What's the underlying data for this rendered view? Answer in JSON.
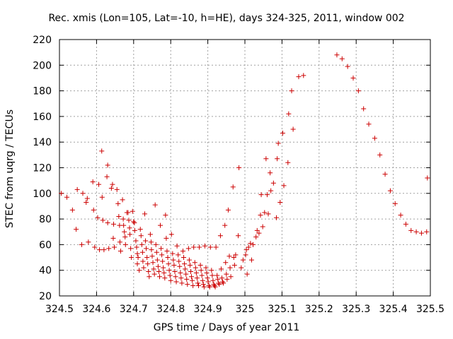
{
  "chart_data": {
    "type": "scatter",
    "title": "Rec. xmis (Lon=105, Lat=-10, h=HE), days 324-325, 2011, window 002",
    "xlabel": "GPS time / Days of year 2011",
    "ylabel": "STEC from uqrg / TECUs",
    "xlim": [
      324.5,
      325.5
    ],
    "ylim": [
      20,
      220
    ],
    "xticks": [
      324.5,
      324.6,
      324.7,
      324.8,
      324.9,
      325,
      325.1,
      325.2,
      325.3,
      325.4,
      325.5
    ],
    "xtick_labels": [
      "324.5",
      "324.6",
      "324.7",
      "324.8",
      "324.9",
      "325",
      "325.1",
      "325.2",
      "325.3",
      "325.4",
      "325.5"
    ],
    "yticks": [
      20,
      40,
      60,
      80,
      100,
      120,
      140,
      160,
      180,
      200,
      220
    ],
    "ytick_labels": [
      "20",
      "40",
      "60",
      "80",
      "100",
      "120",
      "140",
      "160",
      "180",
      "200",
      "220"
    ],
    "grid": true,
    "marker": "+",
    "color": "#cc0000",
    "points": [
      [
        324.505,
        100
      ],
      [
        324.52,
        97
      ],
      [
        324.535,
        87
      ],
      [
        324.545,
        72
      ],
      [
        324.548,
        103
      ],
      [
        324.56,
        60
      ],
      [
        324.563,
        100
      ],
      [
        324.572,
        93
      ],
      [
        324.575,
        96
      ],
      [
        324.578,
        62
      ],
      [
        324.59,
        109
      ],
      [
        324.592,
        87
      ],
      [
        324.595,
        58
      ],
      [
        324.603,
        81
      ],
      [
        324.606,
        107
      ],
      [
        324.608,
        56
      ],
      [
        324.614,
        133
      ],
      [
        324.615,
        97
      ],
      [
        324.617,
        79
      ],
      [
        324.62,
        56
      ],
      [
        324.628,
        113
      ],
      [
        324.63,
        122
      ],
      [
        324.63,
        77
      ],
      [
        324.633,
        57
      ],
      [
        324.64,
        104
      ],
      [
        324.643,
        107
      ],
      [
        324.645,
        65
      ],
      [
        324.646,
        76
      ],
      [
        324.648,
        58
      ],
      [
        324.655,
        103
      ],
      [
        324.658,
        92
      ],
      [
        324.66,
        82
      ],
      [
        324.662,
        75
      ],
      [
        324.663,
        62
      ],
      [
        324.665,
        55
      ],
      [
        324.67,
        95
      ],
      [
        324.672,
        80
      ],
      [
        324.673,
        75
      ],
      [
        324.675,
        70
      ],
      [
        324.677,
        66
      ],
      [
        324.678,
        60
      ],
      [
        324.682,
        85
      ],
      [
        324.685,
        85
      ],
      [
        324.687,
        79
      ],
      [
        324.689,
        73
      ],
      [
        324.69,
        68
      ],
      [
        324.692,
        57
      ],
      [
        324.694,
        50
      ],
      [
        324.697,
        86
      ],
      [
        324.7,
        78
      ],
      [
        324.702,
        77
      ],
      [
        324.703,
        71
      ],
      [
        324.706,
        63
      ],
      [
        324.708,
        58
      ],
      [
        324.71,
        53
      ],
      [
        324.71,
        45
      ],
      [
        324.712,
        50
      ],
      [
        324.715,
        40
      ],
      [
        324.718,
        72
      ],
      [
        324.72,
        67
      ],
      [
        324.722,
        60
      ],
      [
        324.724,
        54
      ],
      [
        324.725,
        47
      ],
      [
        324.727,
        42
      ],
      [
        324.73,
        84
      ],
      [
        324.732,
        63
      ],
      [
        324.734,
        57
      ],
      [
        324.736,
        50
      ],
      [
        324.738,
        45
      ],
      [
        324.74,
        39
      ],
      [
        324.742,
        35
      ],
      [
        324.745,
        68
      ],
      [
        324.747,
        62
      ],
      [
        324.748,
        56
      ],
      [
        324.75,
        51
      ],
      [
        324.752,
        46
      ],
      [
        324.754,
        41
      ],
      [
        324.756,
        37
      ],
      [
        324.758,
        91
      ],
      [
        324.76,
        60
      ],
      [
        324.762,
        54
      ],
      [
        324.764,
        48
      ],
      [
        324.766,
        43
      ],
      [
        324.768,
        39
      ],
      [
        324.77,
        35
      ],
      [
        324.772,
        75
      ],
      [
        324.774,
        57
      ],
      [
        324.776,
        52
      ],
      [
        324.778,
        47
      ],
      [
        324.78,
        42
      ],
      [
        324.782,
        38
      ],
      [
        324.784,
        34
      ],
      [
        324.786,
        83
      ],
      [
        324.788,
        65
      ],
      [
        324.79,
        55
      ],
      [
        324.792,
        50
      ],
      [
        324.794,
        45
      ],
      [
        324.796,
        40
      ],
      [
        324.798,
        36
      ],
      [
        324.8,
        32
      ],
      [
        324.802,
        68
      ],
      [
        324.805,
        53
      ],
      [
        324.807,
        48
      ],
      [
        324.809,
        44
      ],
      [
        324.811,
        39
      ],
      [
        324.813,
        35
      ],
      [
        324.815,
        31
      ],
      [
        324.817,
        59
      ],
      [
        324.82,
        52
      ],
      [
        324.822,
        47
      ],
      [
        324.824,
        43
      ],
      [
        324.826,
        38
      ],
      [
        324.828,
        34
      ],
      [
        324.83,
        30
      ],
      [
        324.833,
        55
      ],
      [
        324.835,
        50
      ],
      [
        324.837,
        45
      ],
      [
        324.839,
        41
      ],
      [
        324.841,
        37
      ],
      [
        324.843,
        33
      ],
      [
        324.845,
        29
      ],
      [
        324.848,
        57
      ],
      [
        324.85,
        48
      ],
      [
        324.852,
        44
      ],
      [
        324.854,
        39
      ],
      [
        324.856,
        35
      ],
      [
        324.858,
        32
      ],
      [
        324.86,
        28
      ],
      [
        324.862,
        58
      ],
      [
        324.865,
        46
      ],
      [
        324.867,
        42
      ],
      [
        324.869,
        38
      ],
      [
        324.871,
        34
      ],
      [
        324.873,
        30
      ],
      [
        324.875,
        28
      ],
      [
        324.877,
        58
      ],
      [
        324.88,
        44
      ],
      [
        324.882,
        40
      ],
      [
        324.884,
        36
      ],
      [
        324.886,
        32
      ],
      [
        324.888,
        29
      ],
      [
        324.89,
        27
      ],
      [
        324.892,
        59
      ],
      [
        324.895,
        42
      ],
      [
        324.897,
        38
      ],
      [
        324.899,
        34
      ],
      [
        324.901,
        31
      ],
      [
        324.903,
        28
      ],
      [
        324.905,
        27
      ],
      [
        324.907,
        58
      ],
      [
        324.91,
        40
      ],
      [
        324.912,
        36
      ],
      [
        324.914,
        32
      ],
      [
        324.916,
        29
      ],
      [
        324.918,
        28
      ],
      [
        324.92,
        27
      ],
      [
        324.922,
        58
      ],
      [
        324.925,
        36
      ],
      [
        324.927,
        33
      ],
      [
        324.929,
        30
      ],
      [
        324.931,
        29
      ],
      [
        324.934,
        67
      ],
      [
        324.936,
        41
      ],
      [
        324.938,
        34
      ],
      [
        324.94,
        31
      ],
      [
        324.942,
        30
      ],
      [
        324.946,
        75
      ],
      [
        324.948,
        46
      ],
      [
        324.95,
        37
      ],
      [
        324.952,
        33
      ],
      [
        324.955,
        87
      ],
      [
        324.958,
        51
      ],
      [
        324.96,
        42
      ],
      [
        324.962,
        35
      ],
      [
        324.968,
        105
      ],
      [
        324.97,
        50
      ],
      [
        324.972,
        44
      ],
      [
        324.975,
        52
      ],
      [
        324.982,
        67
      ],
      [
        324.984,
        120
      ],
      [
        324.99,
        42
      ],
      [
        324.995,
        48
      ],
      [
        325.002,
        52
      ],
      [
        325.004,
        56
      ],
      [
        325.006,
        37
      ],
      [
        325.01,
        58
      ],
      [
        325.015,
        61
      ],
      [
        325.018,
        48
      ],
      [
        325.022,
        60
      ],
      [
        325.03,
        66
      ],
      [
        325.033,
        71
      ],
      [
        325.038,
        69
      ],
      [
        325.042,
        83
      ],
      [
        325.044,
        99
      ],
      [
        325.048,
        74
      ],
      [
        325.053,
        85
      ],
      [
        325.057,
        127
      ],
      [
        325.06,
        99
      ],
      [
        325.063,
        84
      ],
      [
        325.068,
        116
      ],
      [
        325.07,
        102
      ],
      [
        325.077,
        108
      ],
      [
        325.085,
        81
      ],
      [
        325.087,
        127
      ],
      [
        325.09,
        139
      ],
      [
        325.095,
        93
      ],
      [
        325.102,
        147
      ],
      [
        325.105,
        106
      ],
      [
        325.116,
        124
      ],
      [
        325.118,
        162
      ],
      [
        325.126,
        180
      ],
      [
        325.13,
        150
      ],
      [
        325.145,
        191
      ],
      [
        325.158,
        192
      ],
      [
        325.248,
        208
      ],
      [
        325.262,
        205
      ],
      [
        325.277,
        199
      ],
      [
        325.292,
        190
      ],
      [
        325.306,
        180
      ],
      [
        325.32,
        166
      ],
      [
        325.334,
        154
      ],
      [
        325.35,
        143
      ],
      [
        325.364,
        130
      ],
      [
        325.378,
        115
      ],
      [
        325.392,
        102
      ],
      [
        325.405,
        92
      ],
      [
        325.42,
        83
      ],
      [
        325.434,
        76
      ],
      [
        325.448,
        71
      ],
      [
        325.462,
        70
      ],
      [
        325.476,
        69
      ],
      [
        325.49,
        70
      ],
      [
        325.492,
        112
      ]
    ]
  }
}
